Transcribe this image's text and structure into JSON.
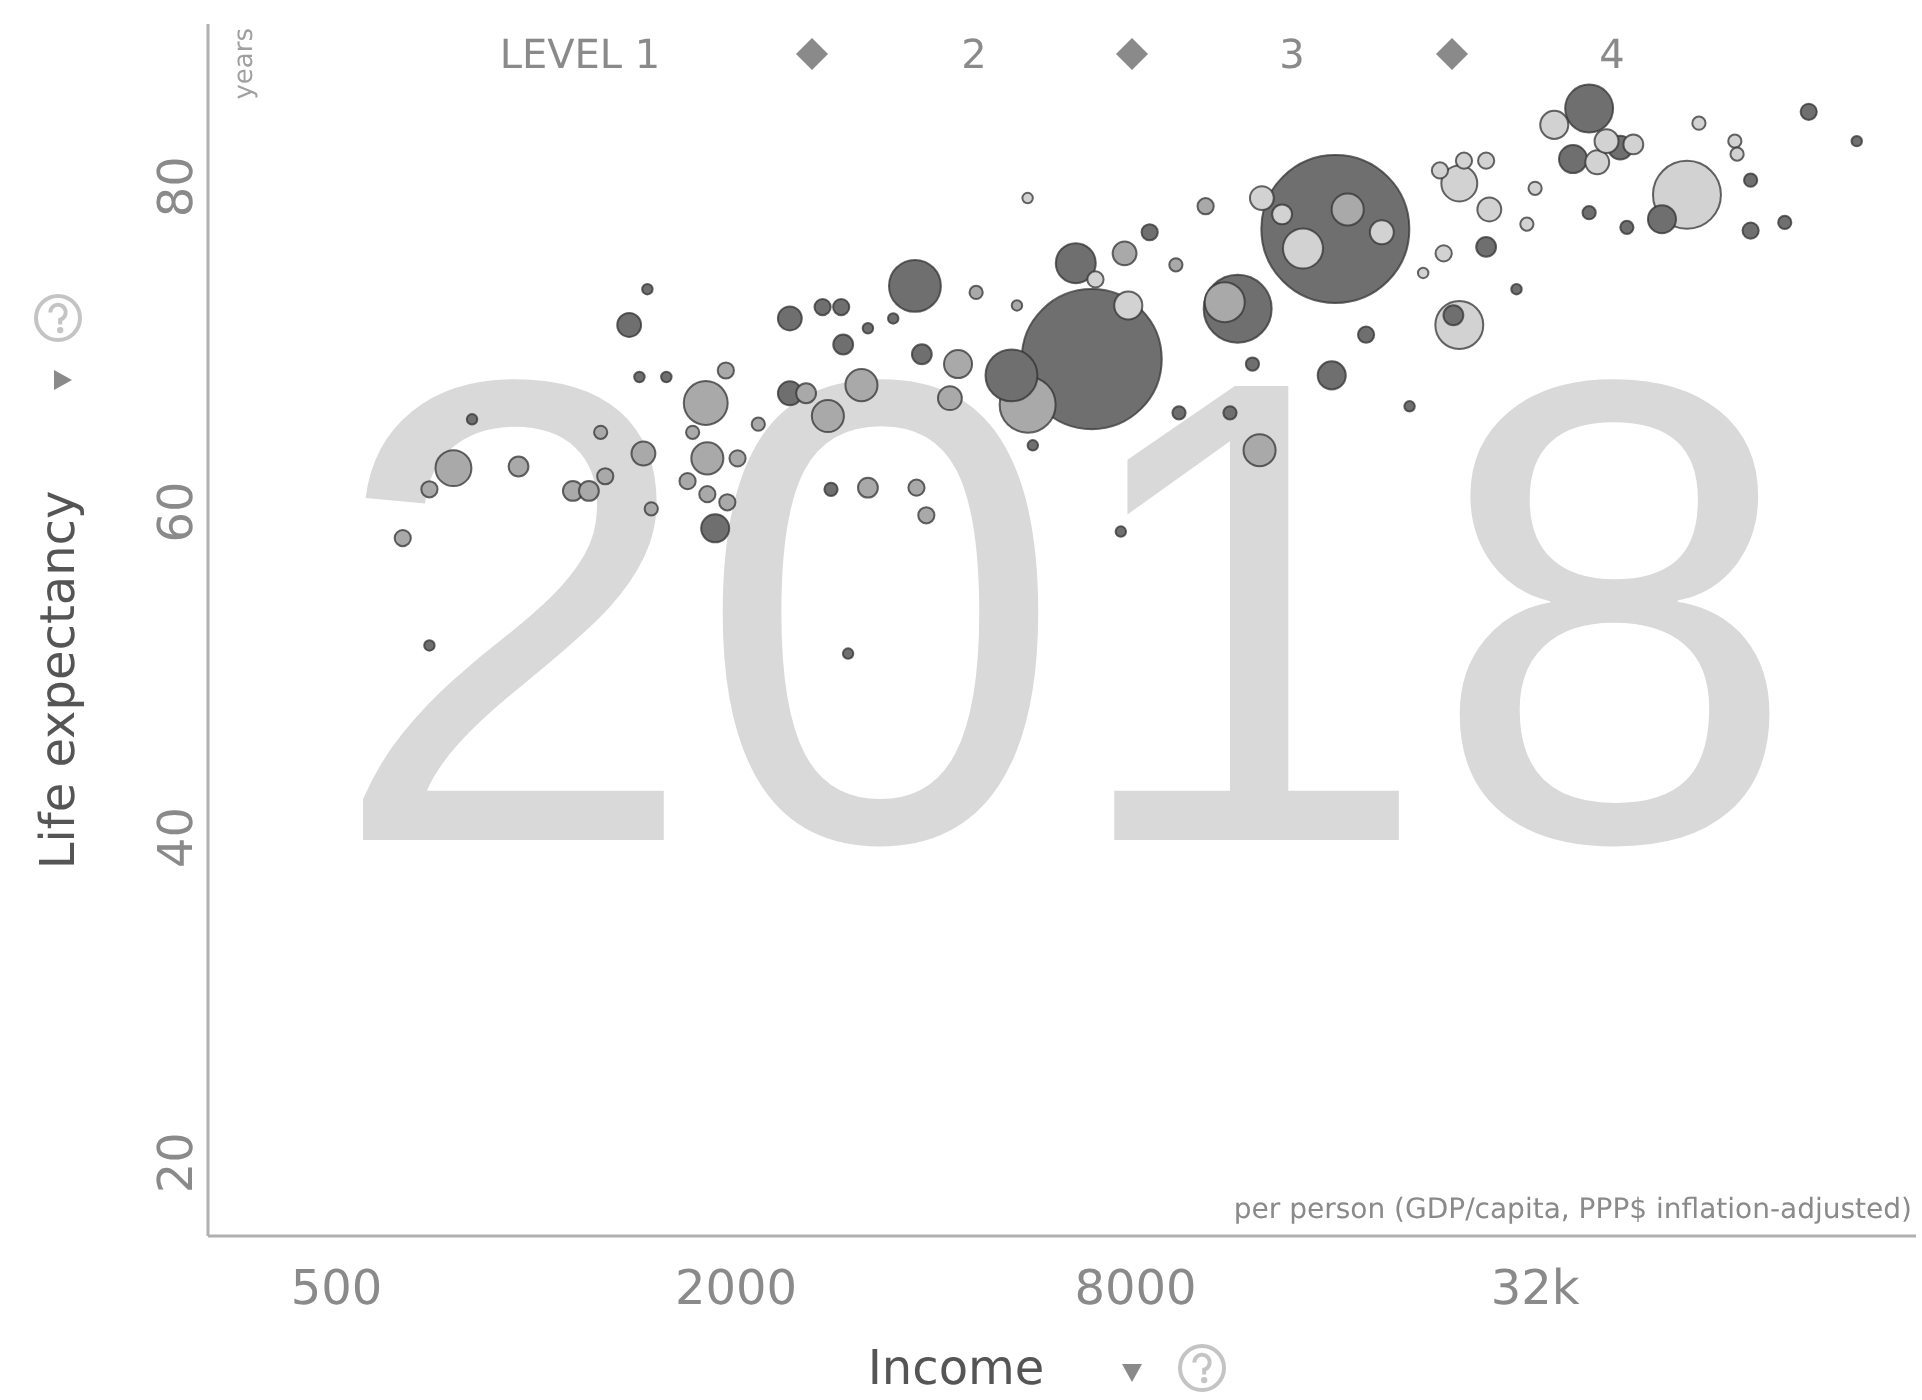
{
  "chart_data": {
    "type": "bubble",
    "xlabel": "Income",
    "ylabel": "Life expectancy",
    "annotations": [
      "2018",
      "years",
      "per person (GDP/capita, PPP$ inflation-adjusted)",
      "LEVEL 1",
      "2",
      "3",
      "4"
    ],
    "log": "x",
    "xlim": [
      320,
      120000
    ],
    "xticks": [
      500,
      2000,
      8000,
      {
        "value": 32000,
        "label": "32k"
      }
    ],
    "ylim": [
      15.5,
      90
    ],
    "yticks": [
      20,
      40,
      60,
      80
    ],
    "series": [
      {
        "color": "#6f6f6f",
        "x": [
          690,
          800,
          1380,
          1470,
          1430,
          1570,
          1860,
          2410,
          2700,
          2880,
          2900,
          2410,
          2780,
          2950,
          3720,
          3810,
          3450,
          82700,
          97700,
          38600,
          36500,
          43000,
          49700,
          67600,
          67600,
          76100,
          38600,
          44000,
          16000,
          6870,
          6500,
          5200,
          11400,
          8400,
          15800,
          17800,
          20700,
          12000,
          9300,
          11100,
          7600,
          5600,
          30000,
          27000,
          24100,
          3160
        ],
        "values": [
          51.8,
          65.7,
          71.5,
          73.7,
          68.3,
          68.3,
          59.0,
          71.9,
          72.6,
          72.6,
          70.3,
          67.3,
          61.4,
          51.3,
          73.9,
          69.7,
          71.9,
          84.6,
          82.8,
          84.8,
          81.7,
          82.4,
          78.0,
          80.4,
          77.3,
          77.8,
          78.4,
          77.5,
          77.4,
          69.4,
          75.3,
          68.4,
          72.5,
          77.2,
          68.4,
          70.9,
          66.5,
          69.1,
          66.1,
          66.1,
          58.8,
          64.1,
          73.7,
          76.3,
          72.1,
          71.3
        ],
        "sizes": [
          0.005,
          0.005,
          0.026,
          0.005,
          0.005,
          0.005,
          0.036,
          0.026,
          0.012,
          0.012,
          0.018,
          0.026,
          0.008,
          0.005,
          0.123,
          0.018,
          0.005,
          0.012,
          0.005,
          0.105,
          0.036,
          0.026,
          0.036,
          0.008,
          0.012,
          0.008,
          0.008,
          0.008,
          1,
          0.895,
          0.073,
          0.123,
          0.211,
          0.012,
          0.036,
          0.012,
          0.005,
          0.008,
          0.008,
          0.008,
          0.005,
          0.005,
          0.005,
          0.018,
          0.018,
          0.005
        ]
      },
      {
        "color": "#a9a9a9",
        "x": [
          629,
          690,
          750,
          940,
          1135,
          1200,
          1270,
          1250,
          1450,
          1490,
          1800,
          1930,
          1720,
          1810,
          1690,
          1810,
          1940,
          2010,
          2160,
          2550,
          2750,
          3090,
          3160,
          3740,
          3870,
          4320,
          4200,
          5500,
          12300,
          10200,
          7700,
          9200,
          4600,
          5300,
          16700,
          10900
        ],
        "values": [
          58.4,
          61.4,
          62.7,
          62.8,
          61.3,
          61.3,
          62.2,
          64.9,
          63.6,
          60.2,
          66.7,
          68.7,
          64.9,
          63.3,
          61.9,
          61.1,
          60.6,
          63.3,
          65.4,
          67.3,
          65.9,
          67.8,
          61.5,
          61.5,
          59.8,
          69.1,
          67.0,
          66.6,
          63.8,
          78.8,
          75.9,
          75.2,
          73.5,
          72.7,
          78.6,
          72.9
        ],
        "sizes": [
          0.012,
          0.012,
          0.059,
          0.018,
          0.018,
          0.018,
          0.012,
          0.008,
          0.026,
          0.008,
          0.088,
          0.012,
          0.008,
          0.047,
          0.012,
          0.012,
          0.012,
          0.012,
          0.008,
          0.018,
          0.047,
          0.047,
          0.018,
          0.012,
          0.012,
          0.036,
          0.026,
          0.143,
          0.047,
          0.012,
          0.026,
          0.008,
          0.008,
          0.005,
          0.047,
          0.073
        ]
      },
      {
        "color": "#d2d2d2",
        "x": [
          34200,
          39700,
          56500,
          64000,
          64500,
          54200,
          7800,
          5500,
          24600,
          24600,
          23000,
          25000,
          27000,
          27300,
          23300,
          31100,
          32000,
          21700,
          14300,
          12400,
          13300,
          18800,
          6960,
          41000,
          45000
        ],
        "values": [
          83.8,
          81.5,
          83.9,
          82.8,
          82.0,
          79.5,
          72.7,
          79.3,
          71.5,
          80.2,
          81.0,
          81.6,
          81.6,
          78.6,
          75.9,
          77.7,
          79.9,
          74.7,
          76.2,
          79.3,
          78.3,
          77.2,
          74.3,
          82.8,
          82.6
        ],
        "sizes": [
          0.036,
          0.026,
          0.008,
          0.008,
          0.008,
          0.211,
          0.036,
          0.005,
          0.105,
          0.059,
          0.012,
          0.012,
          0.012,
          0.026,
          0.012,
          0.008,
          0.008,
          0.005,
          0.073,
          0.026,
          0.018,
          0.026,
          0.012,
          0.026,
          0.018
        ]
      }
    ]
  }
}
